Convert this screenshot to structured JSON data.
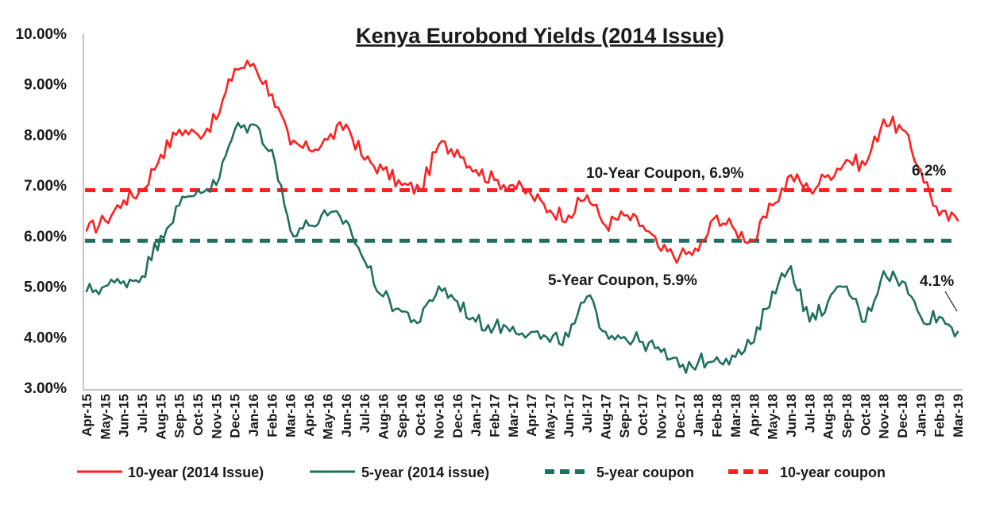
{
  "chart_data": {
    "type": "line",
    "title": "Kenya Eurobond Yields (2014 Issue)",
    "ylim": [
      3.0,
      10.0
    ],
    "y_ticks": [
      "3.00%",
      "4.00%",
      "5.00%",
      "6.00%",
      "7.00%",
      "8.00%",
      "9.00%",
      "10.00%"
    ],
    "categories": [
      "Apr-15",
      "May-15",
      "Jun-15",
      "Jul-15",
      "Aug-15",
      "Sep-15",
      "Oct-15",
      "Nov-15",
      "Dec-15",
      "Jan-16",
      "Feb-16",
      "Mar-16",
      "Apr-16",
      "May-16",
      "Jun-16",
      "Jul-16",
      "Aug-16",
      "Sep-16",
      "Oct-16",
      "Nov-16",
      "Dec-16",
      "Jan-17",
      "Feb-17",
      "Mar-17",
      "Apr-17",
      "May-17",
      "Jun-17",
      "Jul-17",
      "Aug-17",
      "Sep-17",
      "Oct-17",
      "Nov-17",
      "Dec-17",
      "Jan-18",
      "Feb-18",
      "Mar-18",
      "Apr-18",
      "May-18",
      "Jun-18",
      "Jul-18",
      "Aug-18",
      "Sep-18",
      "Oct-18",
      "Nov-18",
      "Dec-18",
      "Jan-19",
      "Feb-19",
      "Mar-19"
    ],
    "grid": false,
    "legend_position": "bottom",
    "series": [
      {
        "name": "10-year (2014 Issue)",
        "color": "#ff1f1f",
        "style": "solid",
        "values": [
          6.1,
          6.3,
          6.7,
          6.9,
          7.6,
          8.1,
          8.0,
          8.3,
          9.3,
          9.4,
          8.8,
          7.8,
          7.7,
          7.9,
          8.2,
          7.5,
          7.3,
          7.0,
          6.9,
          7.8,
          7.7,
          7.3,
          7.1,
          7.0,
          6.8,
          6.5,
          6.4,
          6.8,
          6.2,
          6.4,
          6.2,
          5.7,
          5.6,
          5.7,
          6.4,
          6.1,
          5.9,
          6.6,
          7.2,
          6.9,
          7.2,
          7.5,
          7.4,
          8.3,
          8.1,
          7.3,
          6.4,
          6.3
        ]
      },
      {
        "name": "5-year (2014 issue)",
        "color": "#1e7060",
        "style": "solid",
        "values": [
          4.9,
          5.0,
          5.1,
          5.2,
          6.0,
          6.6,
          6.9,
          7.0,
          8.1,
          8.2,
          7.7,
          6.1,
          6.2,
          6.4,
          6.3,
          5.5,
          4.8,
          4.5,
          4.3,
          5.0,
          4.7,
          4.3,
          4.2,
          4.2,
          4.1,
          3.9,
          4.0,
          4.8,
          4.1,
          4.0,
          3.9,
          3.7,
          3.4,
          3.5,
          3.6,
          3.6,
          3.9,
          4.9,
          5.4,
          4.3,
          4.7,
          5.0,
          4.3,
          5.3,
          5.1,
          4.4,
          4.4,
          4.1
        ]
      },
      {
        "name": "5-year coupon",
        "color": "#1e7060",
        "style": "dashed",
        "value": 5.9
      },
      {
        "name": "10-year coupon",
        "color": "#ff1f1f",
        "style": "dashed",
        "value": 6.9
      }
    ],
    "annotations": [
      {
        "text": "10-Year Coupon, 6.9%"
      },
      {
        "text": "5-Year Coupon, 5.9%"
      },
      {
        "text": "6.2%"
      },
      {
        "text": "4.1%"
      }
    ]
  }
}
